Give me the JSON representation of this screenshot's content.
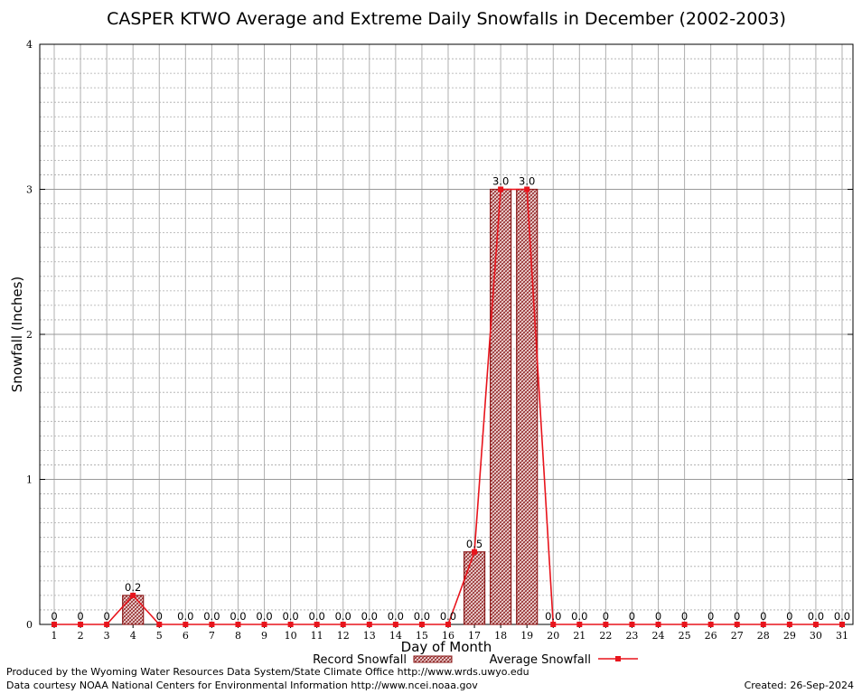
{
  "chart_data": {
    "type": "bar",
    "title": "CASPER KTWO Average and Extreme Daily Snowfalls in December (2002-2003)",
    "xlabel": "Day of Month",
    "ylabel": "Snowfall (Inches)",
    "ylim": [
      0,
      4
    ],
    "yticks": [
      "0",
      "1",
      "2",
      "3",
      "4"
    ],
    "categories": [
      "1",
      "2",
      "3",
      "4",
      "5",
      "6",
      "7",
      "8",
      "9",
      "10",
      "11",
      "12",
      "13",
      "14",
      "15",
      "16",
      "17",
      "18",
      "19",
      "20",
      "21",
      "22",
      "23",
      "24",
      "25",
      "26",
      "27",
      "28",
      "29",
      "30",
      "31"
    ],
    "grid": true,
    "legend_position": "bottom",
    "series": [
      {
        "name": "Record Snowfall",
        "kind": "bar",
        "color": "#8b1a1a",
        "values": [
          0,
          0,
          0,
          0.2,
          0,
          0,
          0,
          0,
          0,
          0,
          0,
          0,
          0,
          0,
          0,
          0,
          0.5,
          3.0,
          3.0,
          0,
          0,
          0,
          0,
          0,
          0,
          0,
          0,
          0,
          0,
          0,
          0
        ]
      },
      {
        "name": "Average Snowfall",
        "kind": "line",
        "color": "#e8141c",
        "values": [
          0,
          0,
          0,
          0.2,
          0,
          0,
          0,
          0,
          0,
          0,
          0,
          0,
          0,
          0,
          0,
          0,
          0.5,
          3.0,
          3.0,
          0,
          0,
          0,
          0,
          0,
          0,
          0,
          0,
          0,
          0,
          0,
          0
        ]
      }
    ],
    "data_labels": [
      "0",
      "0",
      "0",
      "0.2",
      "0",
      "0.0",
      "0.0",
      "0.0",
      "0.0",
      "0.0",
      "0.0",
      "0.0",
      "0.0",
      "0.0",
      "0.0",
      "0.0",
      "0.5",
      "3.0",
      "3.0",
      "0.0",
      "0.0",
      "0",
      "0",
      "0",
      "0",
      "0",
      "0",
      "0",
      "0",
      "0.0",
      "0.0"
    ]
  },
  "footer": {
    "left_line1": "Produced by the Wyoming Water Resources Data System/State Climate Office http://www.wrds.uwyo.edu",
    "left_line2": "Data courtesy NOAA National Centers for Environmental Information http://www.ncei.noaa.gov",
    "created": "Created: 26-Sep-2024"
  }
}
